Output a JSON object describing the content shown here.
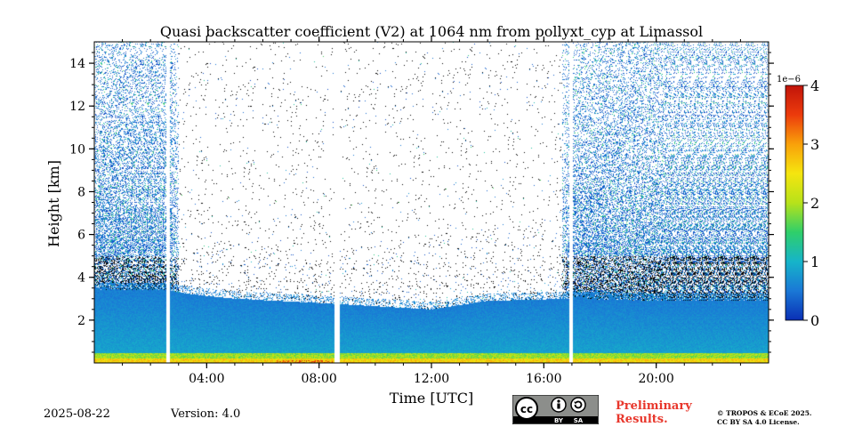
{
  "chart_data": {
    "type": "heatmap",
    "title": "Quasi backscatter coefficient (V2) at 1064 nm from pollyxt_cyp at Limassol",
    "xlabel": "Time [UTC]",
    "ylabel": "Height [km]",
    "xlim_hours": [
      0,
      24
    ],
    "ylim_km": [
      0,
      15
    ],
    "x_ticks": [
      {
        "hour": 4,
        "label": "04:00"
      },
      {
        "hour": 8,
        "label": "08:00"
      },
      {
        "hour": 12,
        "label": "12:00"
      },
      {
        "hour": 16,
        "label": "16:00"
      },
      {
        "hour": 20,
        "label": "20:00"
      }
    ],
    "y_ticks": [
      {
        "value": 2,
        "label": "2"
      },
      {
        "value": 4,
        "label": "4"
      },
      {
        "value": 6,
        "label": "6"
      },
      {
        "value": 8,
        "label": "8"
      },
      {
        "value": 10,
        "label": "10"
      },
      {
        "value": 12,
        "label": "12"
      },
      {
        "value": 14,
        "label": "14"
      }
    ],
    "colorbar": {
      "range": [
        0,
        4
      ],
      "ticks": [
        "0",
        "1",
        "2",
        "3",
        "4"
      ],
      "exponent_label": "1e−6",
      "colormap": [
        "#0a2fb5",
        "#1a78d6",
        "#16b4c9",
        "#2fcf6a",
        "#b7e21a",
        "#f5e50f",
        "#f9a10a",
        "#ec3b0c",
        "#c1140a"
      ]
    },
    "data_gaps_hours": [
      [
        2.55,
        2.7
      ],
      [
        8.55,
        8.75
      ],
      [
        16.9,
        17.05
      ]
    ],
    "boundary_layer_top_km": [
      {
        "hour": 0,
        "km": 3.4
      },
      {
        "hour": 2.5,
        "km": 3.4
      },
      {
        "hour": 3.5,
        "km": 3.2
      },
      {
        "hour": 5,
        "km": 3.0
      },
      {
        "hour": 8,
        "km": 2.8
      },
      {
        "hour": 12,
        "km": 2.5
      },
      {
        "hour": 14,
        "km": 2.9
      },
      {
        "hour": 17,
        "km": 3.0
      },
      {
        "hour": 20,
        "km": 2.9
      },
      {
        "hour": 24,
        "km": 2.9
      }
    ],
    "dense_aerosol_layer_km": [
      3.5,
      5.0
    ]
  },
  "footer": {
    "date": "2025-08-22",
    "version": "Version: 4.0",
    "preliminary_line1": "Preliminary",
    "preliminary_line2": "Results.",
    "license_line1": "© TROPOS & ECoE 2025.",
    "license_line2": "CC BY SA 4.0 License.",
    "cc_by_text": "BY",
    "cc_sa_text": "SA"
  }
}
